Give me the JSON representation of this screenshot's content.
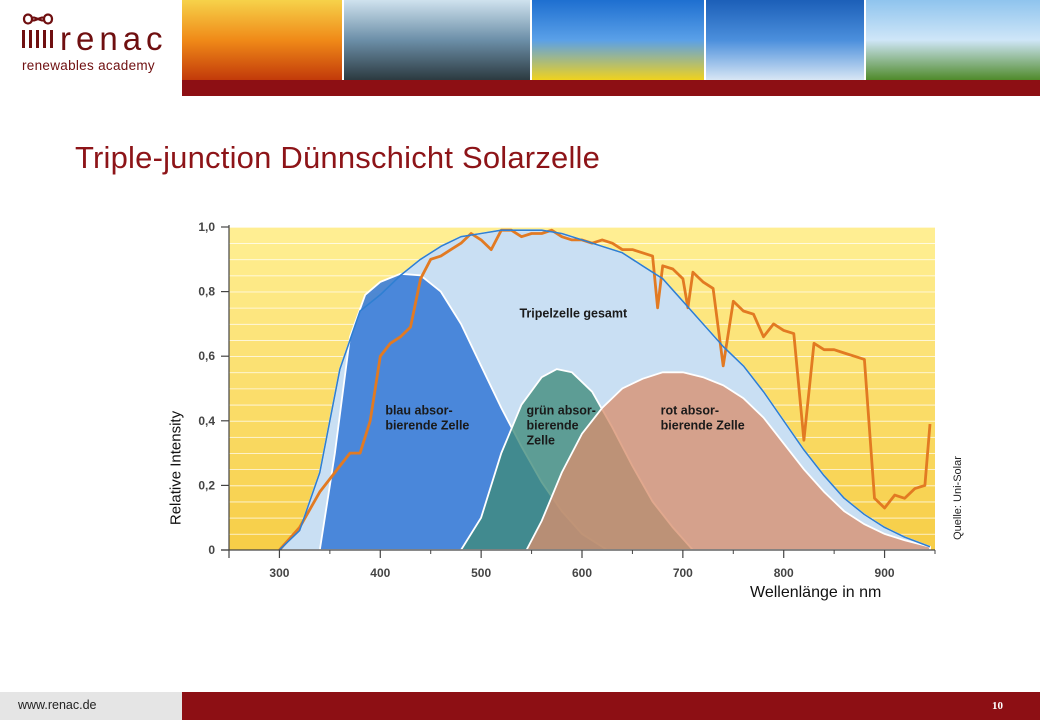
{
  "header": {
    "logo_word": "renac",
    "logo_subtitle": "renewables academy",
    "photos": [
      {
        "name": "sunset-photo",
        "colors": [
          "#f6d24a",
          "#f08a18",
          "#c23a0a"
        ]
      },
      {
        "name": "waterfall-photo",
        "colors": [
          "#cfe2ee",
          "#6c8fa8",
          "#2c3a40"
        ]
      },
      {
        "name": "rapeseed-flowers-photo",
        "colors": [
          "#1e6fd0",
          "#5aa0e8",
          "#f0d21e"
        ]
      },
      {
        "name": "dandelion-photo",
        "colors": [
          "#1c5fb8",
          "#4b8fdc",
          "#d8e6f4"
        ]
      },
      {
        "name": "corn-field-photo",
        "colors": [
          "#8fc4ee",
          "#cfe6f8",
          "#4f8a2a"
        ]
      }
    ]
  },
  "slide": {
    "title": "Triple-junction Dünnschicht Solarzelle",
    "source": "Quelle: Uni-Solar"
  },
  "footer": {
    "url": "www.renac.de",
    "page_number": "10"
  },
  "colors": {
    "brand": "#8d0f14",
    "title": "#8d1418",
    "blue_cell": "#3f7fd8",
    "green_cell": "#3f8a7a",
    "red_cell": "#d98f6e",
    "total_cell": "#c9dff3",
    "measured_line": "#e27a22",
    "envelope_line": "#2f7fd2"
  },
  "chart_data": {
    "type": "area",
    "xlabel": "Wellenlänge in nm",
    "ylabel": "Relative Intensity",
    "xlim": [
      250,
      950
    ],
    "ylim": [
      0,
      1.0
    ],
    "xticks": [
      "300",
      "400",
      "500",
      "600",
      "700",
      "800",
      "900"
    ],
    "yticks": [
      "0",
      "0,2",
      "0,4",
      "0,6",
      "0,8",
      "1,0"
    ],
    "background": "yellow-horizontal-bands",
    "series": [
      {
        "name": "Tripelzelle gesamt",
        "label": "Tripelzelle gesamt",
        "kind": "area",
        "color_key": "total_cell",
        "points": [
          [
            300,
            0
          ],
          [
            320,
            0.06
          ],
          [
            340,
            0.24
          ],
          [
            360,
            0.56
          ],
          [
            380,
            0.74
          ],
          [
            400,
            0.79
          ],
          [
            420,
            0.85
          ],
          [
            440,
            0.9
          ],
          [
            460,
            0.94
          ],
          [
            480,
            0.97
          ],
          [
            500,
            0.98
          ],
          [
            520,
            0.99
          ],
          [
            540,
            0.99
          ],
          [
            560,
            0.99
          ],
          [
            580,
            0.98
          ],
          [
            600,
            0.96
          ],
          [
            620,
            0.94
          ],
          [
            640,
            0.92
          ],
          [
            660,
            0.88
          ],
          [
            680,
            0.84
          ],
          [
            700,
            0.77
          ],
          [
            720,
            0.7
          ],
          [
            740,
            0.63
          ],
          [
            760,
            0.57
          ],
          [
            780,
            0.49
          ],
          [
            800,
            0.4
          ],
          [
            820,
            0.31
          ],
          [
            840,
            0.23
          ],
          [
            860,
            0.16
          ],
          [
            880,
            0.11
          ],
          [
            900,
            0.07
          ],
          [
            920,
            0.04
          ],
          [
            945,
            0.01
          ]
        ]
      },
      {
        "name": "blau absor-bierende Zelle",
        "label": [
          "blau absor-",
          "bierende Zelle"
        ],
        "kind": "area",
        "color_key": "blue_cell",
        "points": [
          [
            340,
            0
          ],
          [
            355,
            0.3
          ],
          [
            370,
            0.66
          ],
          [
            385,
            0.79
          ],
          [
            400,
            0.83
          ],
          [
            420,
            0.855
          ],
          [
            440,
            0.85
          ],
          [
            460,
            0.8
          ],
          [
            480,
            0.7
          ],
          [
            500,
            0.57
          ],
          [
            520,
            0.44
          ],
          [
            540,
            0.32
          ],
          [
            560,
            0.21
          ],
          [
            580,
            0.12
          ],
          [
            600,
            0.05
          ],
          [
            625,
            0
          ]
        ]
      },
      {
        "name": "grün absor-bierende Zelle",
        "label": [
          "grün absor-",
          "bierende",
          "Zelle"
        ],
        "kind": "area",
        "color_key": "green_cell",
        "points": [
          [
            480,
            0
          ],
          [
            500,
            0.1
          ],
          [
            520,
            0.3
          ],
          [
            540,
            0.45
          ],
          [
            560,
            0.535
          ],
          [
            575,
            0.56
          ],
          [
            590,
            0.55
          ],
          [
            610,
            0.49
          ],
          [
            630,
            0.38
          ],
          [
            650,
            0.26
          ],
          [
            670,
            0.15
          ],
          [
            690,
            0.07
          ],
          [
            710,
            0
          ]
        ]
      },
      {
        "name": "rot absor-bierende Zelle",
        "label": [
          "rot absor-",
          "bierende Zelle"
        ],
        "kind": "area",
        "color_key": "red_cell",
        "points": [
          [
            545,
            0
          ],
          [
            560,
            0.09
          ],
          [
            580,
            0.24
          ],
          [
            600,
            0.36
          ],
          [
            620,
            0.44
          ],
          [
            640,
            0.5
          ],
          [
            660,
            0.53
          ],
          [
            680,
            0.55
          ],
          [
            700,
            0.55
          ],
          [
            720,
            0.535
          ],
          [
            740,
            0.51
          ],
          [
            760,
            0.47
          ],
          [
            780,
            0.41
          ],
          [
            800,
            0.33
          ],
          [
            820,
            0.25
          ],
          [
            840,
            0.18
          ],
          [
            860,
            0.12
          ],
          [
            880,
            0.08
          ],
          [
            900,
            0.05
          ],
          [
            920,
            0.03
          ],
          [
            945,
            0.01
          ]
        ]
      },
      {
        "name": "measured",
        "kind": "line",
        "color_key": "measured_line",
        "points": [
          [
            300,
            0
          ],
          [
            320,
            0.07
          ],
          [
            340,
            0.18
          ],
          [
            360,
            0.26
          ],
          [
            370,
            0.3
          ],
          [
            380,
            0.3
          ],
          [
            390,
            0.4
          ],
          [
            400,
            0.6
          ],
          [
            410,
            0.64
          ],
          [
            420,
            0.66
          ],
          [
            430,
            0.69
          ],
          [
            440,
            0.84
          ],
          [
            450,
            0.9
          ],
          [
            460,
            0.91
          ],
          [
            470,
            0.93
          ],
          [
            480,
            0.95
          ],
          [
            490,
            0.98
          ],
          [
            500,
            0.96
          ],
          [
            510,
            0.93
          ],
          [
            520,
            0.99
          ],
          [
            530,
            0.99
          ],
          [
            540,
            0.97
          ],
          [
            550,
            0.98
          ],
          [
            560,
            0.98
          ],
          [
            570,
            0.99
          ],
          [
            580,
            0.97
          ],
          [
            590,
            0.96
          ],
          [
            600,
            0.96
          ],
          [
            610,
            0.95
          ],
          [
            620,
            0.96
          ],
          [
            630,
            0.95
          ],
          [
            640,
            0.93
          ],
          [
            650,
            0.93
          ],
          [
            660,
            0.92
          ],
          [
            670,
            0.91
          ],
          [
            675,
            0.75
          ],
          [
            680,
            0.88
          ],
          [
            690,
            0.87
          ],
          [
            700,
            0.84
          ],
          [
            705,
            0.75
          ],
          [
            710,
            0.86
          ],
          [
            720,
            0.83
          ],
          [
            730,
            0.81
          ],
          [
            740,
            0.57
          ],
          [
            750,
            0.77
          ],
          [
            760,
            0.74
          ],
          [
            770,
            0.73
          ],
          [
            780,
            0.66
          ],
          [
            790,
            0.7
          ],
          [
            800,
            0.68
          ],
          [
            810,
            0.67
          ],
          [
            820,
            0.34
          ],
          [
            830,
            0.64
          ],
          [
            840,
            0.62
          ],
          [
            850,
            0.62
          ],
          [
            860,
            0.61
          ],
          [
            870,
            0.6
          ],
          [
            880,
            0.59
          ],
          [
            890,
            0.16
          ],
          [
            900,
            0.13
          ],
          [
            910,
            0.17
          ],
          [
            920,
            0.16
          ],
          [
            930,
            0.19
          ],
          [
            940,
            0.2
          ],
          [
            945,
            0.39
          ]
        ]
      },
      {
        "name": "envelope",
        "kind": "line",
        "color_key": "envelope_line",
        "points": [
          [
            300,
            0
          ],
          [
            320,
            0.06
          ],
          [
            340,
            0.24
          ],
          [
            360,
            0.56
          ],
          [
            380,
            0.74
          ],
          [
            400,
            0.79
          ],
          [
            420,
            0.85
          ],
          [
            440,
            0.9
          ],
          [
            460,
            0.94
          ],
          [
            480,
            0.97
          ],
          [
            500,
            0.98
          ],
          [
            520,
            0.99
          ],
          [
            540,
            0.99
          ],
          [
            560,
            0.99
          ],
          [
            580,
            0.98
          ],
          [
            600,
            0.96
          ],
          [
            620,
            0.94
          ],
          [
            640,
            0.92
          ],
          [
            660,
            0.88
          ],
          [
            680,
            0.84
          ],
          [
            700,
            0.77
          ],
          [
            720,
            0.7
          ],
          [
            740,
            0.63
          ],
          [
            760,
            0.57
          ],
          [
            780,
            0.49
          ],
          [
            800,
            0.4
          ],
          [
            820,
            0.31
          ],
          [
            840,
            0.23
          ],
          [
            860,
            0.16
          ],
          [
            880,
            0.11
          ],
          [
            900,
            0.07
          ],
          [
            920,
            0.04
          ],
          [
            945,
            0.01
          ]
        ]
      }
    ]
  }
}
